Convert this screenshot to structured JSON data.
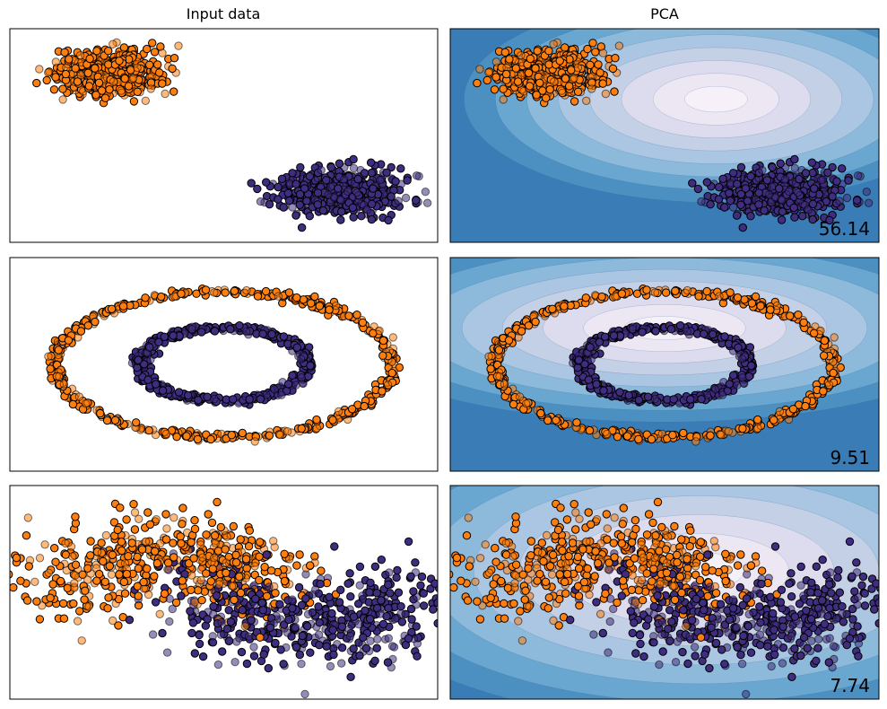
{
  "figure": {
    "column_titles": [
      "Input data",
      "PCA"
    ],
    "colors": {
      "class_0": "#3f2d7f",
      "class_1": "#ff7f0e",
      "edge": "#000000",
      "contour_levels": [
        "#3a7db6",
        "#4c90c2",
        "#6aa7d0",
        "#8dbadb",
        "#aac6e2",
        "#c4d0e6",
        "#dcdcee",
        "#ece7f2",
        "#f6f0f8"
      ]
    },
    "scores": [
      "56.14",
      "9.51",
      "7.74"
    ]
  },
  "chart_data": [
    {
      "type": "scatter",
      "dataset": "blobs",
      "title": "Input data",
      "xlabel": "",
      "ylabel": "",
      "ticks": "hidden",
      "grid": false,
      "xlim": [
        -3.7,
        3.7
      ],
      "ylim": [
        -3.6,
        3.6
      ],
      "series": [
        {
          "class": 1,
          "center": [
            -2.0,
            2.1
          ],
          "spread": [
            0.45,
            0.38
          ],
          "count": 500,
          "color": "#ff7f0e"
        },
        {
          "class": 0,
          "center": [
            2.0,
            -1.9
          ],
          "spread": [
            0.55,
            0.4
          ],
          "count": 500,
          "color": "#3f2d7f"
        }
      ]
    },
    {
      "type": "scatter",
      "dataset": "blobs",
      "title": "PCA",
      "background": "filled-contour",
      "score_label": "56.14",
      "xlim": [
        -3.7,
        3.7
      ],
      "ylim": [
        -3.6,
        3.6
      ],
      "series": [
        {
          "class": 1,
          "center": [
            -2.0,
            2.1
          ],
          "spread": [
            0.45,
            0.38
          ],
          "count": 500,
          "color": "#ff7f0e"
        },
        {
          "class": 0,
          "center": [
            2.0,
            -1.9
          ],
          "spread": [
            0.55,
            0.4
          ],
          "count": 500,
          "color": "#3f2d7f"
        }
      ]
    },
    {
      "type": "scatter",
      "dataset": "circles",
      "title": "",
      "xlim": [
        -1.75,
        1.75
      ],
      "ylim": [
        -1.5,
        1.5
      ],
      "series": [
        {
          "class": 1,
          "radius": 1.2,
          "noise": 0.03,
          "count": 500,
          "color": "#ff7f0e"
        },
        {
          "class": 0,
          "radius": 0.6,
          "noise": 0.03,
          "count": 500,
          "color": "#3f2d7f"
        }
      ]
    },
    {
      "type": "scatter",
      "dataset": "circles",
      "title": "",
      "background": "filled-contour",
      "score_label": "9.51",
      "xlim": [
        -1.75,
        1.75
      ],
      "ylim": [
        -1.5,
        1.5
      ],
      "series": [
        {
          "class": 1,
          "radius": 1.2,
          "noise": 0.03,
          "count": 500,
          "color": "#ff7f0e"
        },
        {
          "class": 0,
          "radius": 0.6,
          "noise": 0.03,
          "count": 500,
          "color": "#3f2d7f"
        }
      ]
    },
    {
      "type": "scatter",
      "dataset": "moons",
      "title": "",
      "xlim": [
        -2.0,
        2.8
      ],
      "ylim": [
        -1.6,
        1.8
      ],
      "series": [
        {
          "class": 1,
          "shape": "upper-moon",
          "noise": 0.3,
          "count": 500,
          "color": "#ff7f0e"
        },
        {
          "class": 0,
          "shape": "lower-moon",
          "noise": 0.3,
          "count": 500,
          "color": "#3f2d7f"
        }
      ]
    },
    {
      "type": "scatter",
      "dataset": "moons",
      "title": "",
      "background": "filled-contour",
      "score_label": "7.74",
      "xlim": [
        -2.0,
        2.8
      ],
      "ylim": [
        -1.6,
        1.8
      ],
      "series": [
        {
          "class": 1,
          "shape": "upper-moon",
          "noise": 0.3,
          "count": 500,
          "color": "#ff7f0e"
        },
        {
          "class": 0,
          "shape": "lower-moon",
          "noise": 0.3,
          "count": 500,
          "color": "#3f2d7f"
        }
      ]
    }
  ]
}
